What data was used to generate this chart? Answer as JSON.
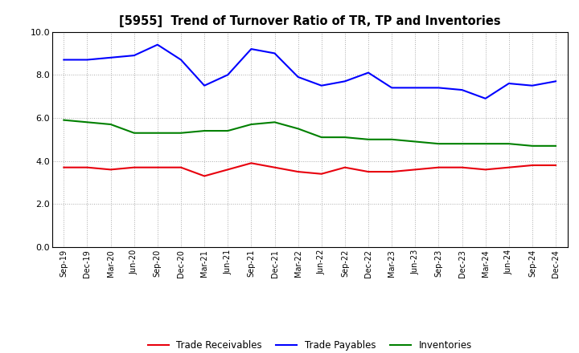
{
  "title": "[5955]  Trend of Turnover Ratio of TR, TP and Inventories",
  "x_labels": [
    "Sep-19",
    "Dec-19",
    "Mar-20",
    "Jun-20",
    "Sep-20",
    "Dec-20",
    "Mar-21",
    "Jun-21",
    "Sep-21",
    "Dec-21",
    "Mar-22",
    "Jun-22",
    "Sep-22",
    "Dec-22",
    "Mar-23",
    "Jun-23",
    "Sep-23",
    "Dec-23",
    "Mar-24",
    "Jun-24",
    "Sep-24",
    "Dec-24"
  ],
  "trade_receivables": [
    3.7,
    3.7,
    3.6,
    3.7,
    3.7,
    3.7,
    3.3,
    3.6,
    3.9,
    3.7,
    3.5,
    3.4,
    3.7,
    3.5,
    3.5,
    3.6,
    3.7,
    3.7,
    3.6,
    3.7,
    3.8,
    3.8
  ],
  "trade_payables": [
    8.7,
    8.7,
    8.8,
    8.9,
    9.4,
    8.7,
    7.5,
    8.0,
    9.2,
    9.0,
    7.9,
    7.5,
    7.7,
    8.1,
    7.4,
    7.4,
    7.4,
    7.3,
    6.9,
    7.6,
    7.5,
    7.7
  ],
  "inventories": [
    5.9,
    5.8,
    5.7,
    5.3,
    5.3,
    5.3,
    5.4,
    5.4,
    5.7,
    5.8,
    5.5,
    5.1,
    5.1,
    5.0,
    5.0,
    4.9,
    4.8,
    4.8,
    4.8,
    4.8,
    4.7,
    4.7
  ],
  "ylim": [
    0.0,
    10.0
  ],
  "yticks": [
    0.0,
    2.0,
    4.0,
    6.0,
    8.0,
    10.0
  ],
  "color_tr": "#e8000d",
  "color_tp": "#0000ff",
  "color_inv": "#008000",
  "legend_labels": [
    "Trade Receivables",
    "Trade Payables",
    "Inventories"
  ],
  "background_color": "#ffffff",
  "grid_color": "#aaaaaa"
}
